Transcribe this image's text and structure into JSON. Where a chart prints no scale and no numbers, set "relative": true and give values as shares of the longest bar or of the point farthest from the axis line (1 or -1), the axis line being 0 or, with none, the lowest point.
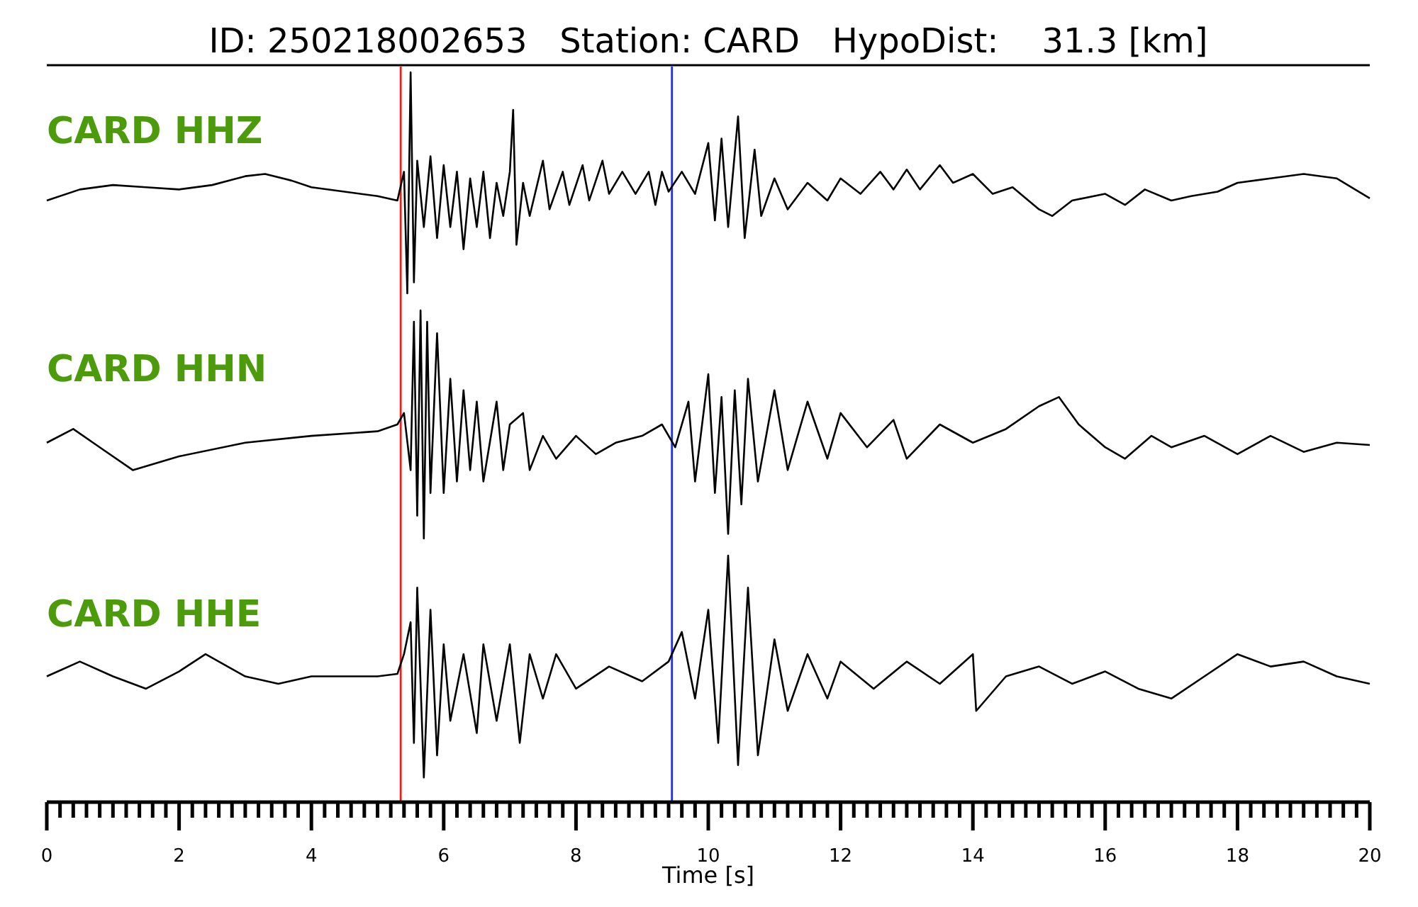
{
  "chart_data": [
    {
      "type": "line",
      "title": "ID: 250218002653   Station: CARD   HypoDist:    31.3 [km]",
      "relative": true,
      "xlim": [
        0,
        20
      ],
      "tick_labels": false,
      "ref_lines": [
        {
          "axis": "x",
          "value": 5.35,
          "color": "#e8201c"
        },
        {
          "axis": "x",
          "value": 9.45,
          "color": "#2431e6"
        }
      ],
      "series": [
        {
          "name": "CARD HHZ",
          "color": "#000000",
          "x": [
            0,
            0.5,
            1,
            1.5,
            2,
            2.5,
            3,
            3.3,
            3.7,
            4,
            4.5,
            5,
            5.3,
            5.4,
            5.45,
            5.5,
            5.55,
            5.6,
            5.7,
            5.8,
            5.9,
            6.0,
            6.1,
            6.2,
            6.3,
            6.4,
            6.5,
            6.6,
            6.7,
            6.8,
            6.9,
            7.0,
            7.05,
            7.1,
            7.2,
            7.3,
            7.5,
            7.6,
            7.8,
            7.9,
            8.1,
            8.2,
            8.4,
            8.5,
            8.7,
            8.9,
            9.1,
            9.2,
            9.3,
            9.4,
            9.6,
            9.8,
            10,
            10.1,
            10.2,
            10.3,
            10.45,
            10.55,
            10.7,
            10.8,
            11,
            11.2,
            11.5,
            11.8,
            12,
            12.3,
            12.6,
            12.8,
            13,
            13.2,
            13.5,
            13.7,
            14,
            14.3,
            14.6,
            15,
            15.2,
            15.5,
            16,
            16.3,
            16.6,
            17,
            17.3,
            17.7,
            18,
            18.5,
            19,
            19.5,
            20
          ],
          "values": [
            0.42,
            0.47,
            0.49,
            0.48,
            0.47,
            0.49,
            0.53,
            0.54,
            0.51,
            0.48,
            0.46,
            0.44,
            0.42,
            0.55,
            0,
            1,
            0.05,
            0.6,
            0.3,
            0.62,
            0.25,
            0.58,
            0.3,
            0.55,
            0.2,
            0.52,
            0.3,
            0.55,
            0.25,
            0.5,
            0.35,
            0.55,
            0.83,
            0.22,
            0.5,
            0.35,
            0.6,
            0.38,
            0.55,
            0.4,
            0.58,
            0.42,
            0.6,
            0.45,
            0.55,
            0.45,
            0.55,
            0.4,
            0.55,
            0.46,
            0.55,
            0.45,
            0.68,
            0.33,
            0.7,
            0.3,
            0.8,
            0.25,
            0.65,
            0.35,
            0.52,
            0.38,
            0.5,
            0.42,
            0.52,
            0.45,
            0.55,
            0.47,
            0.56,
            0.47,
            0.58,
            0.5,
            0.54,
            0.45,
            0.48,
            0.38,
            0.35,
            0.42,
            0.45,
            0.4,
            0.47,
            0.42,
            0.44,
            0.46,
            0.5,
            0.52,
            0.54,
            0.52,
            0.43
          ]
        }
      ]
    },
    {
      "type": "line",
      "relative": true,
      "xlim": [
        0,
        20
      ],
      "tick_labels": false,
      "ref_lines": [
        {
          "axis": "x",
          "value": 5.35,
          "color": "#e8201c"
        },
        {
          "axis": "x",
          "value": 9.45,
          "color": "#2431e6"
        }
      ],
      "series": [
        {
          "name": "CARD HHN",
          "color": "#000000",
          "x": [
            0,
            0.4,
            0.8,
            1.3,
            2,
            3,
            4,
            5,
            5.3,
            5.4,
            5.5,
            5.55,
            5.6,
            5.65,
            5.7,
            5.75,
            5.8,
            5.9,
            6.0,
            6.1,
            6.2,
            6.3,
            6.4,
            6.5,
            6.6,
            6.8,
            6.9,
            7.0,
            7.2,
            7.3,
            7.5,
            7.7,
            8,
            8.3,
            8.6,
            9,
            9.3,
            9.5,
            9.7,
            9.8,
            10,
            10.1,
            10.2,
            10.3,
            10.4,
            10.5,
            10.6,
            10.75,
            11,
            11.2,
            11.5,
            11.8,
            12,
            12.4,
            12.8,
            13,
            13.5,
            14,
            14.5,
            15,
            15.3,
            15.6,
            16,
            16.3,
            16.7,
            17,
            17.5,
            18,
            18.5,
            19,
            19.5,
            20
          ],
          "values": [
            0.42,
            0.48,
            0.4,
            0.3,
            0.36,
            0.42,
            0.45,
            0.47,
            0.5,
            0.55,
            0.3,
            0.95,
            0.1,
            1,
            0,
            0.95,
            0.2,
            0.9,
            0.2,
            0.7,
            0.25,
            0.65,
            0.3,
            0.6,
            0.25,
            0.6,
            0.3,
            0.5,
            0.55,
            0.3,
            0.45,
            0.35,
            0.45,
            0.37,
            0.42,
            0.45,
            0.5,
            0.4,
            0.6,
            0.25,
            0.72,
            0.2,
            0.62,
            0.02,
            0.65,
            0.15,
            0.7,
            0.25,
            0.65,
            0.3,
            0.6,
            0.35,
            0.55,
            0.4,
            0.52,
            0.35,
            0.5,
            0.42,
            0.48,
            0.58,
            0.62,
            0.5,
            0.4,
            0.35,
            0.45,
            0.4,
            0.45,
            0.37,
            0.45,
            0.38,
            0.42,
            0.41
          ]
        }
      ]
    },
    {
      "type": "line",
      "relative": true,
      "xlim": [
        0,
        20
      ],
      "tick_labels": "x",
      "xlabel": "Time [s]",
      "xticks": [
        0,
        {
          "value": 0.2,
          "label": null
        },
        {
          "value": 0.4,
          "label": null
        },
        {
          "value": 0.6,
          "label": null
        },
        {
          "value": 0.8,
          "label": null
        },
        {
          "value": 1,
          "label": null
        },
        {
          "value": 1.2,
          "label": null
        },
        {
          "value": 1.4,
          "label": null
        },
        {
          "value": 1.6,
          "label": null
        },
        {
          "value": 1.8,
          "label": null
        },
        2,
        {
          "value": 2.2,
          "label": null
        },
        {
          "value": 2.4,
          "label": null
        },
        {
          "value": 2.6,
          "label": null
        },
        {
          "value": 2.8,
          "label": null
        },
        {
          "value": 3,
          "label": null
        },
        {
          "value": 3.2,
          "label": null
        },
        {
          "value": 3.4,
          "label": null
        },
        {
          "value": 3.6,
          "label": null
        },
        {
          "value": 3.8,
          "label": null
        },
        4,
        {
          "value": 4.2,
          "label": null
        },
        {
          "value": 4.4,
          "label": null
        },
        {
          "value": 4.6,
          "label": null
        },
        {
          "value": 4.8,
          "label": null
        },
        {
          "value": 5,
          "label": null
        },
        {
          "value": 5.2,
          "label": null
        },
        {
          "value": 5.4,
          "label": null
        },
        {
          "value": 5.6,
          "label": null
        },
        {
          "value": 5.8,
          "label": null
        },
        6,
        {
          "value": 6.2,
          "label": null
        },
        {
          "value": 6.4,
          "label": null
        },
        {
          "value": 6.6,
          "label": null
        },
        {
          "value": 6.8,
          "label": null
        },
        {
          "value": 7,
          "label": null
        },
        {
          "value": 7.2,
          "label": null
        },
        {
          "value": 7.4,
          "label": null
        },
        {
          "value": 7.6,
          "label": null
        },
        {
          "value": 7.8,
          "label": null
        },
        8,
        {
          "value": 8.2,
          "label": null
        },
        {
          "value": 8.4,
          "label": null
        },
        {
          "value": 8.6,
          "label": null
        },
        {
          "value": 8.8,
          "label": null
        },
        {
          "value": 9,
          "label": null
        },
        {
          "value": 9.2,
          "label": null
        },
        {
          "value": 9.4,
          "label": null
        },
        {
          "value": 9.6,
          "label": null
        },
        {
          "value": 9.8,
          "label": null
        },
        10,
        {
          "value": 10.2,
          "label": null
        },
        {
          "value": 10.4,
          "label": null
        },
        {
          "value": 10.6,
          "label": null
        },
        {
          "value": 10.8,
          "label": null
        },
        {
          "value": 11,
          "label": null
        },
        {
          "value": 11.2,
          "label": null
        },
        {
          "value": 11.4,
          "label": null
        },
        {
          "value": 11.6,
          "label": null
        },
        {
          "value": 11.8,
          "label": null
        },
        12,
        {
          "value": 12.2,
          "label": null
        },
        {
          "value": 12.4,
          "label": null
        },
        {
          "value": 12.6,
          "label": null
        },
        {
          "value": 12.8,
          "label": null
        },
        {
          "value": 13,
          "label": null
        },
        {
          "value": 13.2,
          "label": null
        },
        {
          "value": 13.4,
          "label": null
        },
        {
          "value": 13.6,
          "label": null
        },
        {
          "value": 13.8,
          "label": null
        },
        14,
        {
          "value": 14.2,
          "label": null
        },
        {
          "value": 14.4,
          "label": null
        },
        {
          "value": 14.6,
          "label": null
        },
        {
          "value": 14.8,
          "label": null
        },
        {
          "value": 15,
          "label": null
        },
        {
          "value": 15.2,
          "label": null
        },
        {
          "value": 15.4,
          "label": null
        },
        {
          "value": 15.6,
          "label": null
        },
        {
          "value": 15.8,
          "label": null
        },
        16,
        {
          "value": 16.2,
          "label": null
        },
        {
          "value": 16.4,
          "label": null
        },
        {
          "value": 16.6,
          "label": null
        },
        {
          "value": 16.8,
          "label": null
        },
        {
          "value": 17,
          "label": null
        },
        {
          "value": 17.2,
          "label": null
        },
        {
          "value": 17.4,
          "label": null
        },
        {
          "value": 17.6,
          "label": null
        },
        {
          "value": 17.8,
          "label": null
        },
        18,
        {
          "value": 18.2,
          "label": null
        },
        {
          "value": 18.4,
          "label": null
        },
        {
          "value": 18.6,
          "label": null
        },
        {
          "value": 18.8,
          "label": null
        },
        {
          "value": 19,
          "label": null
        },
        {
          "value": 19.2,
          "label": null
        },
        {
          "value": 19.4,
          "label": null
        },
        {
          "value": 19.6,
          "label": null
        },
        {
          "value": 19.8,
          "label": null
        },
        20
      ],
      "ref_lines": [
        {
          "axis": "x",
          "value": 5.35,
          "color": "#e8201c"
        },
        {
          "axis": "x",
          "value": 9.45,
          "color": "#2431e6"
        }
      ],
      "series": [
        {
          "name": "CARD HHE",
          "color": "#000000",
          "x": [
            0,
            0.5,
            1,
            1.5,
            2,
            2.4,
            3,
            3.5,
            4,
            5,
            5.3,
            5.4,
            5.5,
            5.55,
            5.6,
            5.7,
            5.8,
            5.9,
            6,
            6.1,
            6.3,
            6.5,
            6.6,
            6.8,
            7,
            7.15,
            7.3,
            7.5,
            7.7,
            8,
            8.5,
            9,
            9.4,
            9.6,
            9.8,
            10.0,
            10.15,
            10.3,
            10.45,
            10.6,
            10.75,
            11,
            11.2,
            11.5,
            11.8,
            12,
            12.5,
            13,
            13.5,
            14,
            14.05,
            14.5,
            15,
            15.5,
            16,
            16.5,
            17,
            17.5,
            18,
            18.5,
            19,
            19.5,
            20
          ],
          "values": [
            0.51,
            0.57,
            0.51,
            0.46,
            0.53,
            0.6,
            0.51,
            0.48,
            0.51,
            0.51,
            0.52,
            0.6,
            0.73,
            0.24,
            0.87,
            0.1,
            0.78,
            0.19,
            0.64,
            0.33,
            0.6,
            0.28,
            0.64,
            0.33,
            0.64,
            0.24,
            0.6,
            0.42,
            0.6,
            0.46,
            0.55,
            0.49,
            0.57,
            0.69,
            0.42,
            0.78,
            0.24,
            1,
            0.15,
            0.87,
            0.19,
            0.66,
            0.37,
            0.6,
            0.42,
            0.57,
            0.46,
            0.57,
            0.48,
            0.6,
            0.37,
            0.51,
            0.55,
            0.48,
            0.53,
            0.46,
            0.42,
            0.51,
            0.6,
            0.55,
            0.57,
            0.51,
            0.48
          ]
        }
      ]
    }
  ]
}
